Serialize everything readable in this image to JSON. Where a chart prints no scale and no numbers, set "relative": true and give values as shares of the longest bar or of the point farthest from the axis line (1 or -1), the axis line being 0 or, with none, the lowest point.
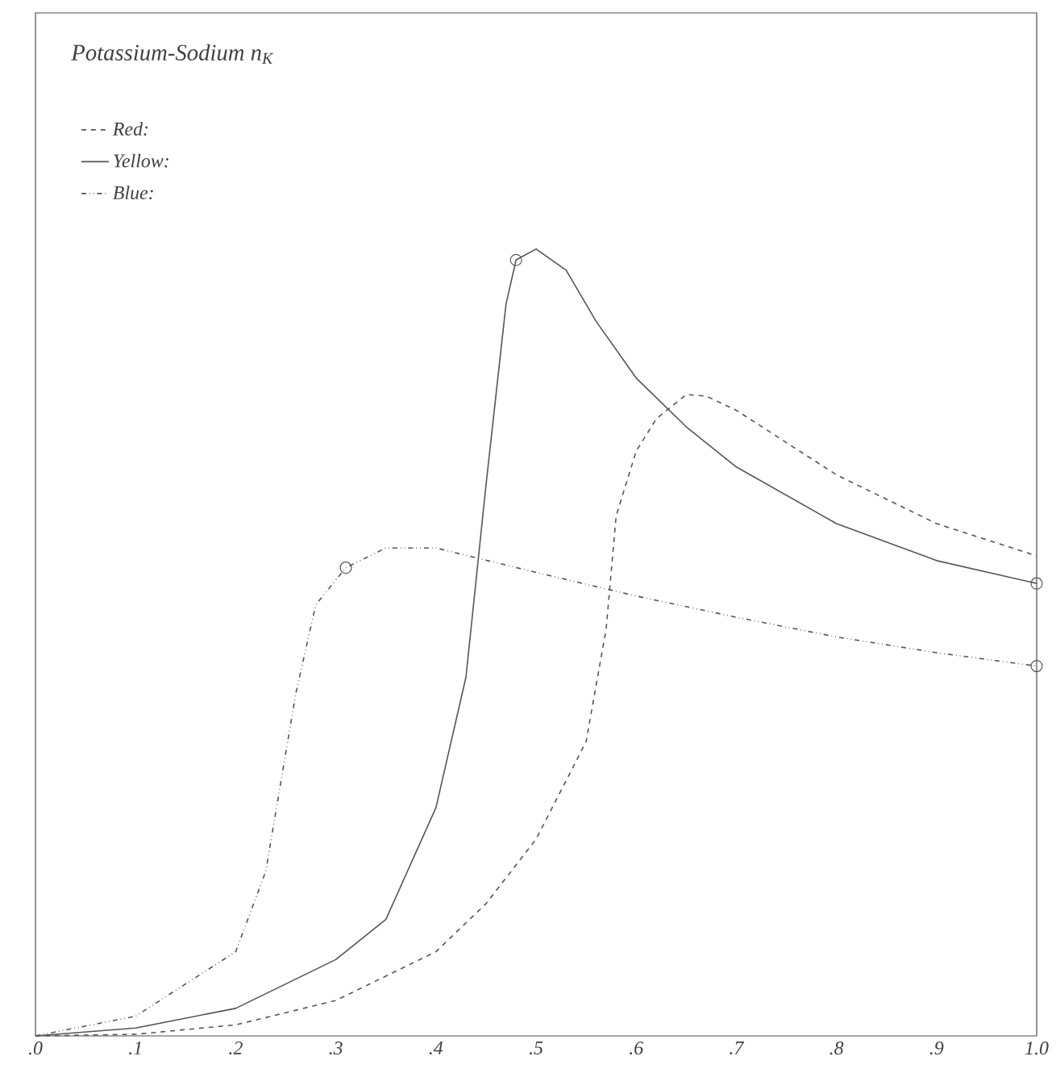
{
  "chart_data": {
    "type": "line",
    "title": "Potassium-Sodium n$_{K}$",
    "relative": true,
    "tick_labels": "x",
    "grid": false,
    "legend": "top left",
    "marker": "none",
    "xlim": [
      0,
      1.0
    ],
    "xticks": [
      {
        "value": 0,
        "label": ".0"
      },
      {
        "value": 0.1,
        "label": ".1"
      },
      {
        "value": 0.2,
        "label": ".2"
      },
      {
        "value": 0.3,
        "label": ".3"
      },
      {
        "value": 0.4,
        "label": ".4"
      },
      {
        "value": 0.5,
        "label": ".5"
      },
      {
        "value": 0.6,
        "label": ".6"
      },
      {
        "value": 0.7,
        "label": ".7"
      },
      {
        "value": 0.8,
        "label": ".8"
      },
      {
        "value": 0.9,
        "label": ".9"
      },
      {
        "value": 1.0,
        "label": "1.0"
      }
    ],
    "series": [
      {
        "name": "Red:",
        "color": "#555555",
        "line_style": "dashed",
        "x": [
          0,
          0.1,
          0.2,
          0.3,
          0.4,
          0.45,
          0.5,
          0.55,
          0.57,
          0.58,
          0.6,
          0.62,
          0.65,
          0.67,
          0.7,
          0.8,
          0.9,
          1.0
        ],
        "values": [
          0,
          0.002,
          0.014,
          0.045,
          0.107,
          0.168,
          0.25,
          0.374,
          0.517,
          0.661,
          0.743,
          0.784,
          0.815,
          0.813,
          0.795,
          0.713,
          0.651,
          0.61
        ]
      },
      {
        "name": "Yellow:",
        "color": "#555555",
        "line_style": "solid",
        "x": [
          0,
          0.1,
          0.2,
          0.3,
          0.35,
          0.4,
          0.43,
          0.45,
          0.47,
          0.48,
          0.5,
          0.53,
          0.56,
          0.6,
          0.65,
          0.7,
          0.8,
          0.9,
          1.0
        ],
        "values": [
          0,
          0.01,
          0.035,
          0.097,
          0.148,
          0.29,
          0.456,
          0.7,
          0.93,
          0.986,
          1.0,
          0.973,
          0.908,
          0.836,
          0.774,
          0.723,
          0.651,
          0.604,
          0.575
        ]
      },
      {
        "name": "Blue:",
        "color": "#555555",
        "line_style": "dashdotted",
        "x": [
          0,
          0.1,
          0.2,
          0.23,
          0.26,
          0.28,
          0.31,
          0.35,
          0.4,
          0.5,
          0.6,
          0.7,
          0.8,
          0.9,
          1.0
        ],
        "values": [
          0,
          0.025,
          0.107,
          0.209,
          0.435,
          0.548,
          0.595,
          0.62,
          0.62,
          0.589,
          0.559,
          0.532,
          0.507,
          0.487,
          0.47
        ]
      },
      {
        "type": "scatter",
        "marker": "circle",
        "color": "#555555",
        "x": [
          0.31,
          0.48,
          1.0,
          1.0
        ],
        "values": [
          0.595,
          0.986,
          0.575,
          0.47
        ]
      }
    ]
  }
}
